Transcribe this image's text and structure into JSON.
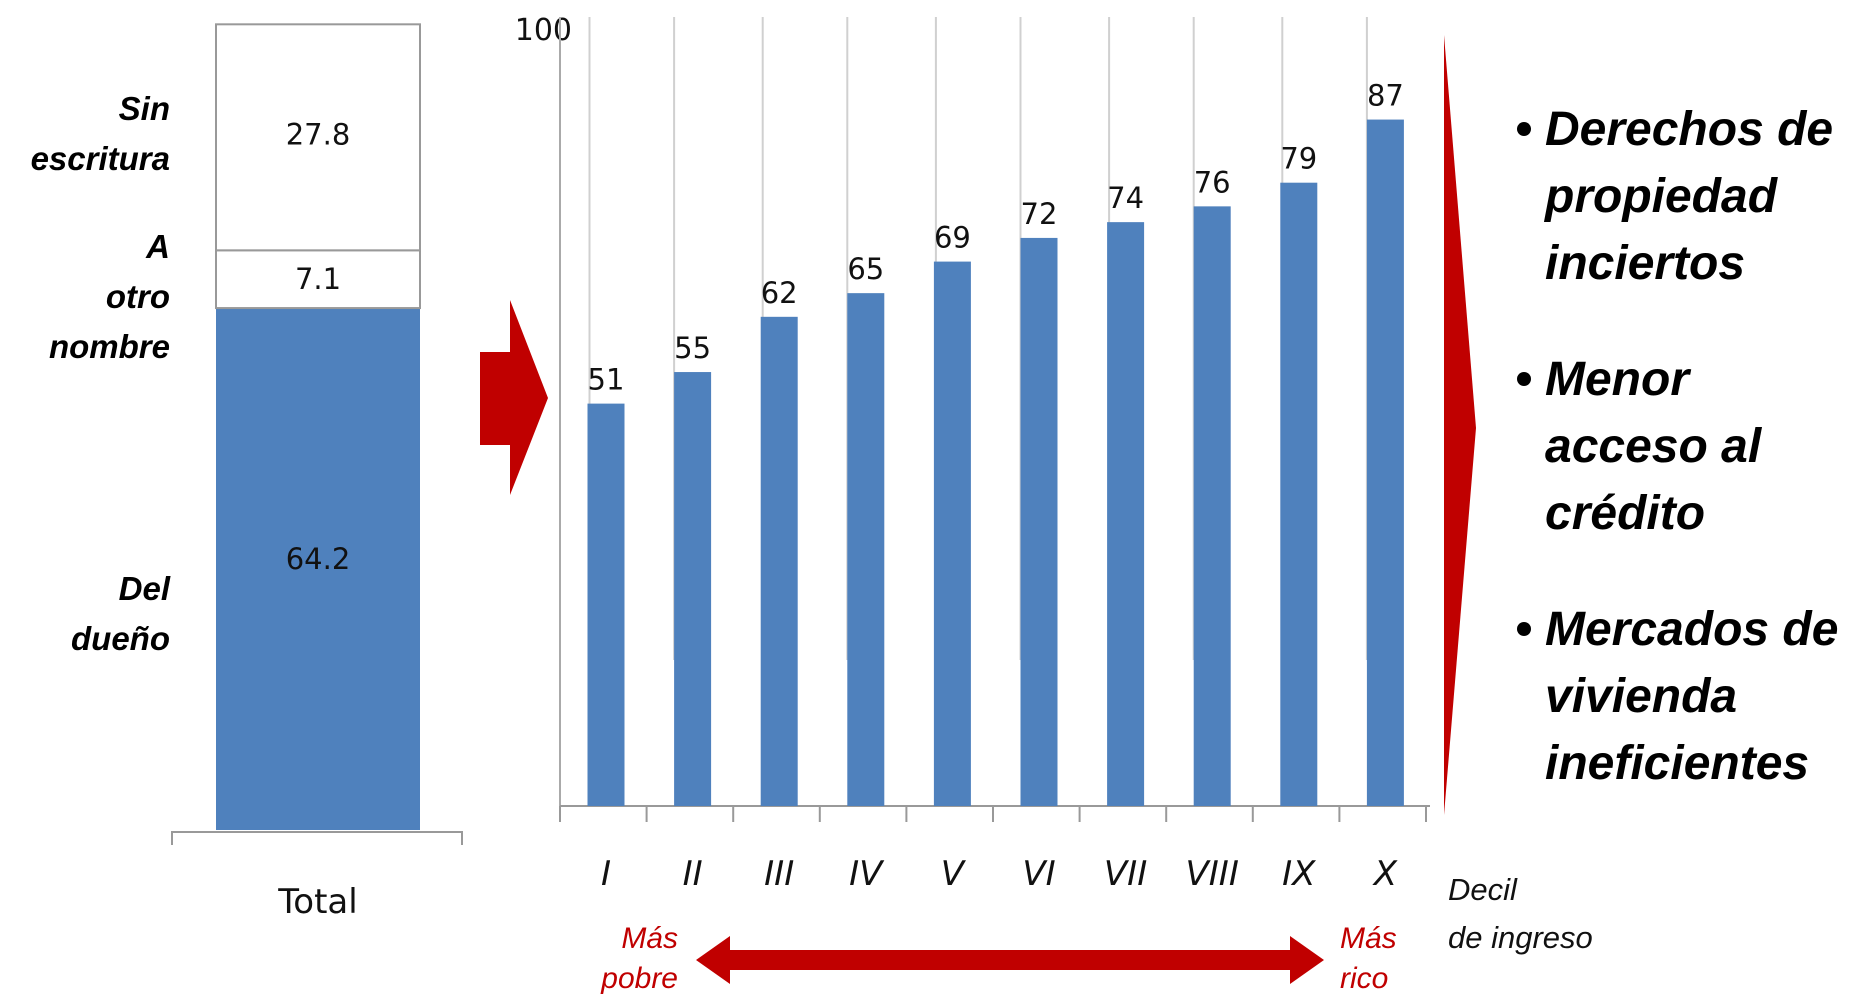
{
  "chart_data": [
    {
      "type": "bar",
      "stacked": true,
      "categories": [
        "Total"
      ],
      "series": [
        {
          "name": "Del dueño",
          "values": [
            64.2
          ],
          "color": "#4f81bd"
        },
        {
          "name": "A otro nombre",
          "values": [
            7.1
          ],
          "color": "#ffffff"
        },
        {
          "name": "Sin escritura",
          "values": [
            27.8
          ],
          "color": "#ffffff"
        }
      ],
      "segment_labels": [
        "Del dueño",
        "A otro nombre",
        "Sin escritura"
      ],
      "ylim": [
        0,
        100
      ]
    },
    {
      "type": "bar",
      "categories": [
        "I",
        "II",
        "III",
        "IV",
        "V",
        "VI",
        "VII",
        "VIII",
        "IX",
        "X"
      ],
      "values": [
        51,
        55,
        62,
        65,
        69,
        72,
        74,
        76,
        79,
        87
      ],
      "ytick": "100",
      "ylim": [
        0,
        100
      ],
      "bar_color": "#4f81bd",
      "xlabel": "Decil de ingreso",
      "range_left": "Más pobre",
      "range_right": "Más rico"
    }
  ],
  "bullets": [
    "Derechos de propiedad inciertos",
    "Menor acceso al crédito",
    "Mercados de vivienda ineficientes"
  ],
  "colors": {
    "bar": "#4f81bd",
    "accent": "#c00000"
  }
}
